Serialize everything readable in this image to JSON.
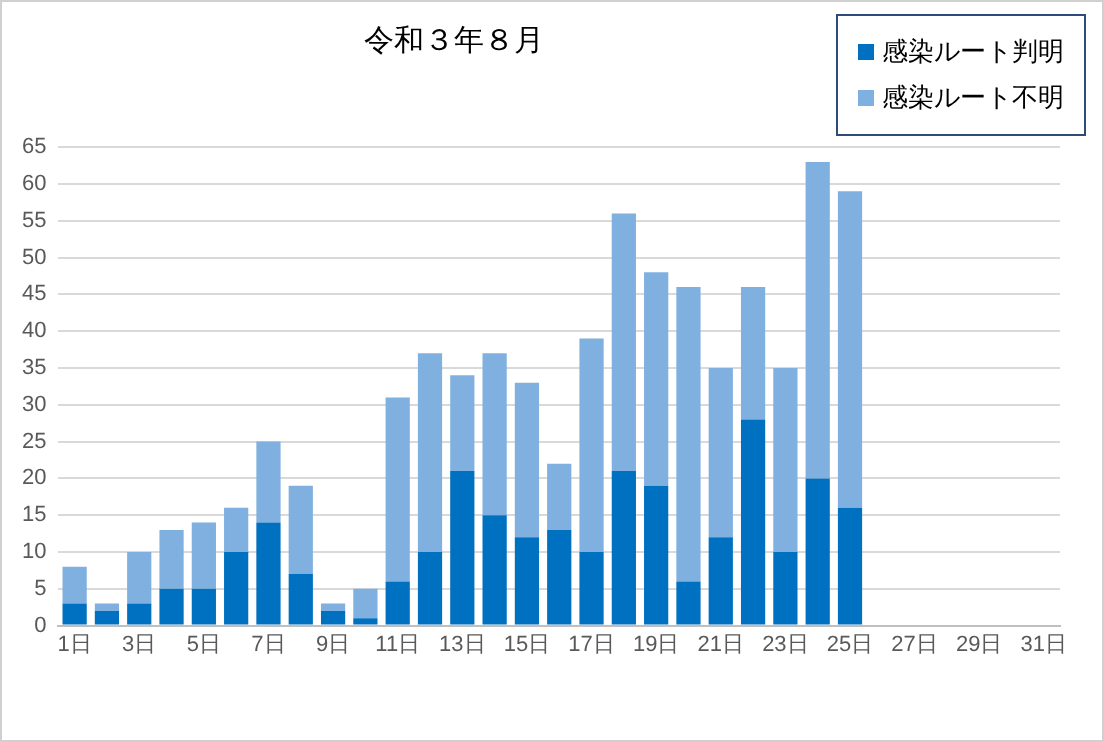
{
  "chart_data": {
    "type": "bar",
    "title": "令和３年８月",
    "stacked": true,
    "categories": [
      "1日",
      null,
      "3日",
      null,
      "5日",
      null,
      "7日",
      null,
      "9日",
      null,
      "11日",
      null,
      "13日",
      null,
      "15日",
      null,
      "17日",
      null,
      "19日",
      null,
      "21日",
      null,
      "23日",
      null,
      "25日",
      null,
      "27日",
      null,
      "29日",
      null,
      "31日"
    ],
    "series": [
      {
        "name": "感染ルート判明",
        "color": "#0070c0",
        "values": [
          3,
          2,
          3,
          5,
          5,
          10,
          14,
          7,
          2,
          1,
          6,
          10,
          21,
          15,
          12,
          13,
          10,
          21,
          19,
          6,
          12,
          28,
          10,
          20,
          16,
          null,
          null,
          null,
          null,
          null,
          null
        ]
      },
      {
        "name": "感染ルート不明",
        "color": "#7fb0df",
        "values": [
          5,
          1,
          7,
          8,
          9,
          6,
          11,
          12,
          1,
          4,
          25,
          27,
          13,
          22,
          21,
          9,
          29,
          35,
          29,
          40,
          23,
          18,
          25,
          43,
          43,
          null,
          null,
          null,
          null,
          null,
          null
        ]
      }
    ],
    "ylim": [
      0,
      65
    ],
    "yticks": [
      0,
      5,
      10,
      15,
      20,
      25,
      30,
      35,
      40,
      45,
      50,
      55,
      60,
      65
    ],
    "grid": "y",
    "legend": "top right"
  }
}
